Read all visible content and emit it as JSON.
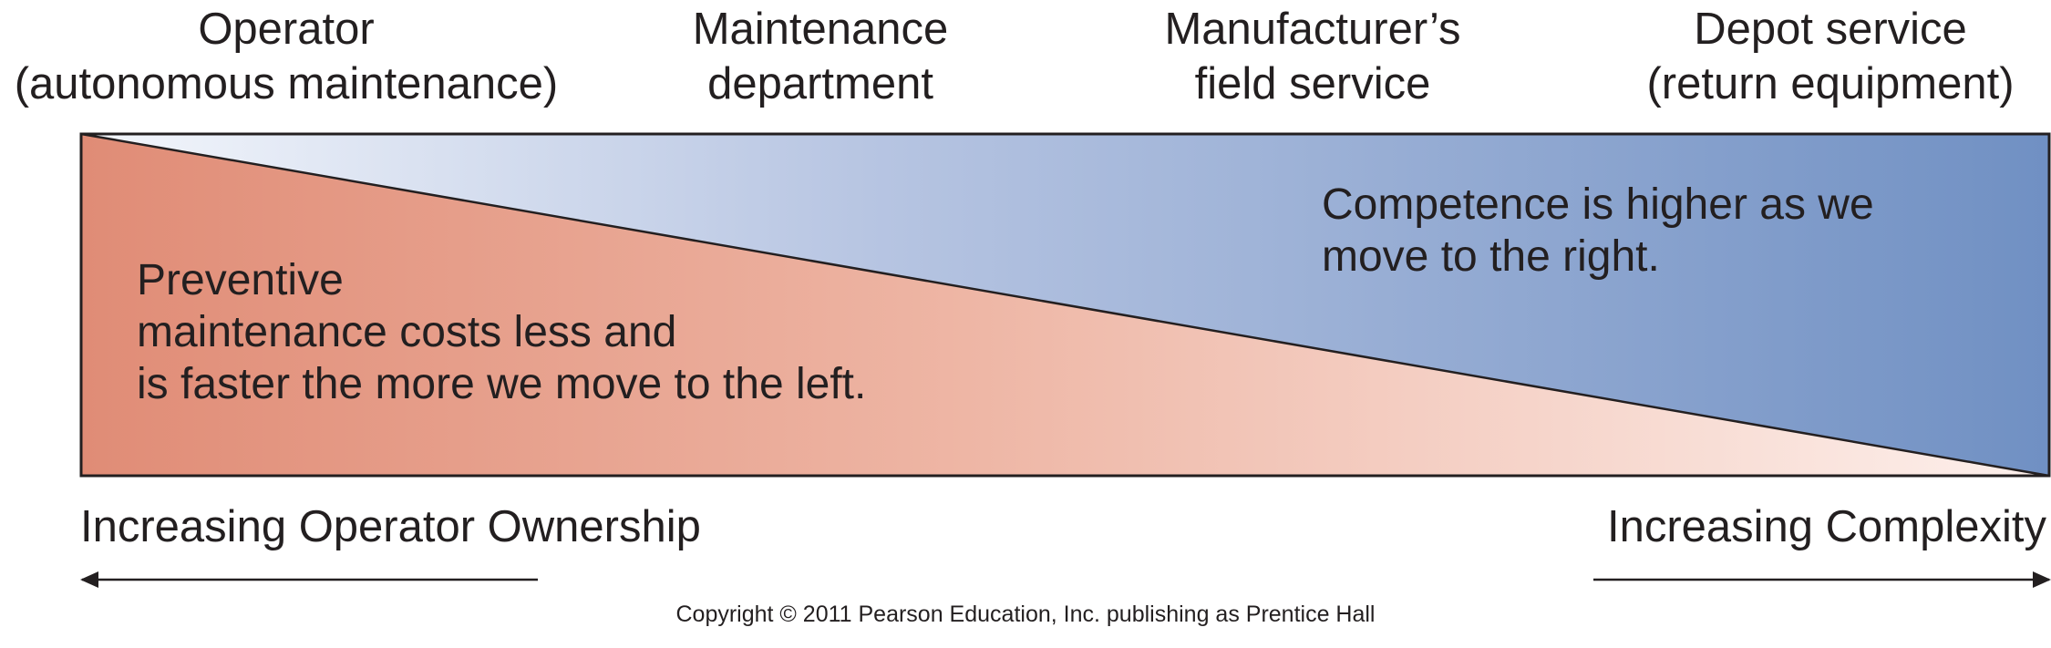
{
  "headers": [
    {
      "line1": "Operator",
      "line2": "(autonomous maintenance)"
    },
    {
      "line1": "Maintenance",
      "line2": "department"
    },
    {
      "line1": "Manufacturer’s",
      "line2": "field service"
    },
    {
      "line1": "Depot service",
      "line2": "(return equipment)"
    }
  ],
  "left_note": {
    "lines": [
      "Preventive",
      "maintenance costs less and",
      "is faster the more we move to the left."
    ]
  },
  "right_note": {
    "lines": [
      "Competence is higher as we",
      "move to the right."
    ]
  },
  "axis": {
    "left_label": "Increasing Operator Ownership",
    "right_label": "Increasing Complexity"
  },
  "copyright": "Copyright © 2011 Pearson Education, Inc. publishing as Prentice Hall",
  "colors": {
    "cost_left": "#e08c76",
    "cost_mid": "#eeb6a5",
    "cost_right": "#fdf0ec",
    "competence_left": "#f4f7fc",
    "competence_mid": "#b7c5e2",
    "competence_right": "#7090c3",
    "outline": "#231f20"
  }
}
